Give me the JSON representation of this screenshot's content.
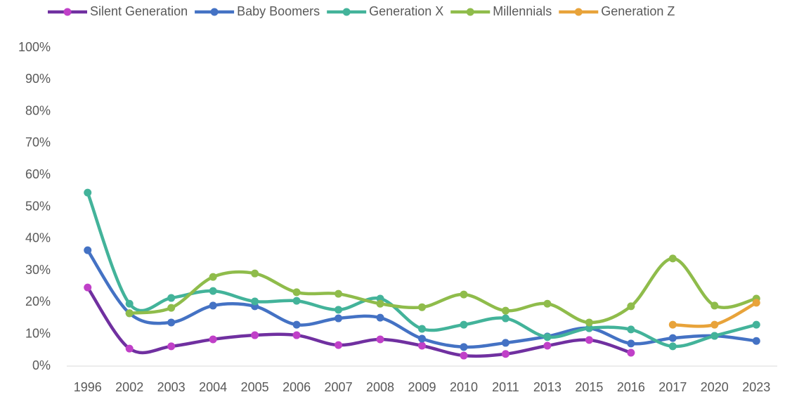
{
  "chart_data": {
    "type": "line",
    "categories": [
      "1996",
      "2002",
      "2003",
      "2004",
      "2005",
      "2006",
      "2007",
      "2008",
      "2009",
      "2010",
      "2011",
      "2013",
      "2015",
      "2016",
      "2017",
      "2020",
      "2023"
    ],
    "series": [
      {
        "name": "Silent Generation",
        "color": "#7030a0",
        "marker_color": "#c040c8",
        "values": [
          24.7,
          5.5,
          6.2,
          8.4,
          9.7,
          9.7,
          6.6,
          8.4,
          6.4,
          3.3,
          3.8,
          6.4,
          8.2,
          4.2,
          null,
          null,
          null
        ]
      },
      {
        "name": "Baby Boomers",
        "color": "#4472c4",
        "values": [
          36.4,
          16.6,
          13.7,
          19.0,
          18.8,
          13.0,
          15.0,
          15.2,
          8.6,
          6.0,
          7.3,
          9.3,
          11.9,
          7.1,
          8.8,
          9.5,
          7.9
        ]
      },
      {
        "name": "Generation X",
        "color": "#43b39a",
        "values": [
          54.5,
          19.6,
          21.4,
          23.6,
          20.3,
          20.5,
          17.7,
          21.2,
          11.7,
          13.0,
          15.0,
          9.1,
          11.9,
          11.5,
          6.2,
          9.5,
          13.0
        ]
      },
      {
        "name": "Millennials",
        "color": "#8fbc4b",
        "values": [
          null,
          16.6,
          18.3,
          28.0,
          29.1,
          23.2,
          22.7,
          19.6,
          18.5,
          22.5,
          17.4,
          19.6,
          13.7,
          18.8,
          33.8,
          19.0,
          21.2
        ]
      },
      {
        "name": "Generation Z",
        "color": "#e8a33a",
        "values": [
          null,
          null,
          null,
          null,
          null,
          null,
          null,
          null,
          null,
          null,
          null,
          null,
          null,
          null,
          13.0,
          13.0,
          19.9
        ]
      }
    ],
    "ylim": [
      0,
      100
    ],
    "yticks": [
      {
        "value": 0,
        "label": "0%"
      },
      {
        "value": 10,
        "label": "10%"
      },
      {
        "value": 20,
        "label": "20%"
      },
      {
        "value": 30,
        "label": "30%"
      },
      {
        "value": 40,
        "label": "40%"
      },
      {
        "value": 50,
        "label": "50%"
      },
      {
        "value": 60,
        "label": "60%"
      },
      {
        "value": 70,
        "label": "70%"
      },
      {
        "value": 80,
        "label": "80%"
      },
      {
        "value": 90,
        "label": "90%"
      },
      {
        "value": 100,
        "label": "100%"
      }
    ],
    "legend": "top",
    "grid": false
  }
}
